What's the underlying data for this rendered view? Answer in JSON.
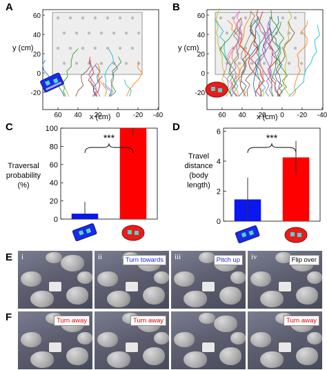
{
  "panels": {
    "A": "A",
    "B": "B",
    "C": "C",
    "D": "D",
    "E": "E",
    "F": "F"
  },
  "trajectory_plots": {
    "ylabel": "y (cm)",
    "xlabel": "x (cm)",
    "yticks": [
      "60",
      "40",
      "20",
      "0",
      "-20"
    ],
    "xticks": [
      "60",
      "40",
      "20",
      "0",
      "-20",
      "-40"
    ]
  },
  "chart_data": [
    {
      "type": "bar",
      "categories": [
        "blue robot",
        "red robot"
      ],
      "values": [
        6,
        100
      ],
      "errors": [
        13,
        8
      ],
      "colors": [
        "#0b17f0",
        "#ff0000"
      ],
      "ylabel": "Traversal probability (%)",
      "ylabel_lines": [
        "Traversal",
        "probability",
        "(%)"
      ],
      "ylim": [
        0,
        100
      ],
      "yticks": [
        0,
        20,
        40,
        60,
        80,
        100
      ],
      "significance": "***"
    },
    {
      "type": "bar",
      "categories": [
        "blue robot",
        "red robot"
      ],
      "values": [
        1.45,
        4.25
      ],
      "errors": [
        1.45,
        1.1
      ],
      "colors": [
        "#0b17f0",
        "#ff0000"
      ],
      "ylabel": "Travel distance (body length)",
      "ylabel_lines": [
        "Travel",
        "distance",
        "(body",
        "length)"
      ],
      "ylim": [
        0,
        6.2
      ],
      "yticks": [
        0,
        2,
        4,
        6
      ],
      "significance": "***"
    }
  ],
  "photos_E": [
    {
      "roman": "i",
      "callout": "",
      "color": "none"
    },
    {
      "roman": "ii",
      "callout": "Turn towards",
      "color": "blue"
    },
    {
      "roman": "iii",
      "callout": "Pitch up",
      "color": "blue"
    },
    {
      "roman": "iv",
      "callout": "Flip over",
      "color": "black"
    }
  ],
  "photos_F": [
    {
      "callout": "Turn away",
      "color": "red"
    },
    {
      "callout": "Turn away",
      "color": "red"
    },
    {
      "callout": "",
      "color": "none"
    },
    {
      "callout": "Turn away",
      "color": "red"
    }
  ]
}
